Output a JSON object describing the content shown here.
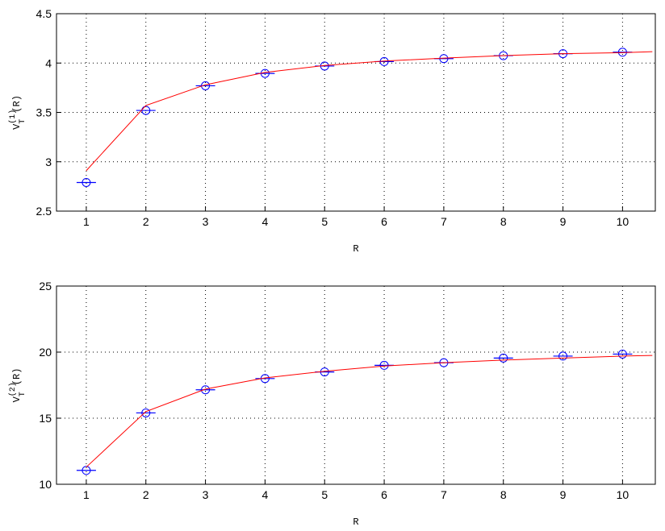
{
  "chart_data": [
    {
      "type": "line",
      "xlabel": "R",
      "ylabel": {
        "base": "V",
        "sup": "(1)",
        "sub": "T",
        "arg": "(R)"
      },
      "xlim": [
        0.5,
        10.55
      ],
      "ylim": [
        2.5,
        4.5
      ],
      "xticks": [
        1,
        2,
        3,
        4,
        5,
        6,
        7,
        8,
        9,
        10
      ],
      "yticks": [
        2.5,
        3,
        {
          "value": 3.5,
          "label": "3.5"
        },
        4,
        {
          "value": 4.5,
          "label": "4.5"
        }
      ],
      "grid": true,
      "series": [
        {
          "marker": "circle",
          "color": "#0000ff",
          "x": [
            1,
            2,
            3,
            4,
            5,
            6,
            7,
            8,
            9,
            10
          ],
          "values": [
            2.79,
            3.52,
            3.77,
            3.895,
            3.97,
            4.015,
            4.045,
            4.075,
            4.095,
            4.11
          ]
        },
        {
          "marker": "none",
          "color": "#ff0000",
          "x": [
            1,
            2,
            3,
            4,
            5,
            6,
            7,
            8,
            9,
            10,
            10.5
          ],
          "values": [
            2.91,
            3.57,
            3.78,
            3.905,
            3.975,
            4.02,
            4.05,
            4.075,
            4.095,
            4.105,
            4.115
          ]
        }
      ]
    },
    {
      "type": "line",
      "xlabel": "R",
      "ylabel": {
        "base": "V",
        "sup": "(2)",
        "sub": "T",
        "arg": "(R)"
      },
      "xlim": [
        0.5,
        10.55
      ],
      "ylim": [
        10,
        25
      ],
      "xticks": [
        1,
        2,
        3,
        4,
        5,
        6,
        7,
        8,
        9,
        10
      ],
      "yticks": [
        10,
        15,
        20,
        25
      ],
      "grid": true,
      "series": [
        {
          "marker": "circle",
          "color": "#0000ff",
          "x": [
            1,
            2,
            3,
            4,
            5,
            6,
            7,
            8,
            9,
            10
          ],
          "values": [
            11.05,
            15.4,
            17.15,
            18.0,
            18.5,
            19.0,
            19.2,
            19.55,
            19.7,
            19.85
          ]
        },
        {
          "marker": "none",
          "color": "#ff0000",
          "x": [
            1,
            2,
            3,
            4,
            5,
            6,
            7,
            8,
            9,
            10,
            10.5
          ],
          "values": [
            11.3,
            15.5,
            17.2,
            18.05,
            18.55,
            18.95,
            19.2,
            19.4,
            19.55,
            19.7,
            19.75
          ]
        }
      ]
    }
  ]
}
